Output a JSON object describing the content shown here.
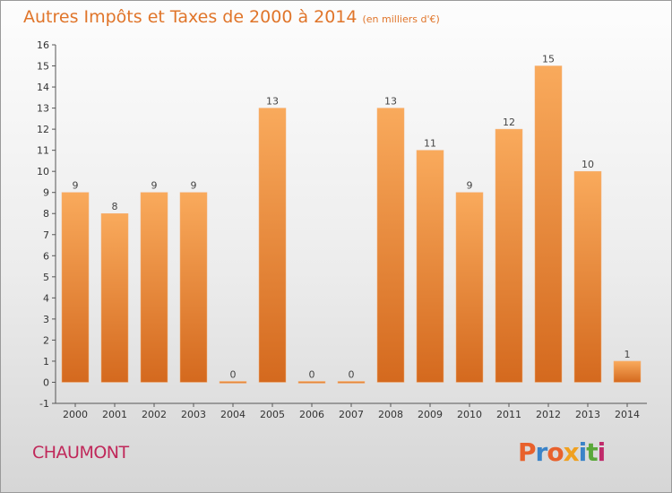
{
  "chart_data": {
    "type": "bar",
    "title": "Autres Impôts et Taxes de 2000 à 2014",
    "unit": "(en milliers d'€)",
    "categories": [
      "2000",
      "2001",
      "2002",
      "2003",
      "2004",
      "2005",
      "2006",
      "2007",
      "2008",
      "2009",
      "2010",
      "2011",
      "2012",
      "2013",
      "2014"
    ],
    "values": [
      9,
      8,
      9,
      9,
      0,
      13,
      0,
      0,
      13,
      11,
      9,
      12,
      15,
      10,
      1
    ],
    "ylim": [
      -1,
      16
    ],
    "yticks": [
      -1,
      0,
      1,
      2,
      3,
      4,
      5,
      6,
      7,
      8,
      9,
      10,
      11,
      12,
      13,
      14,
      15,
      16
    ],
    "grid": false,
    "bar_color": "#f09a48"
  },
  "footer": {
    "city": "CHAUMONT",
    "logo": "Proxiti",
    "logo_colors": [
      "#e8612c",
      "#3a83c8",
      "#e8612c",
      "#f0a020",
      "#3a83c8",
      "#5aa83a",
      "#c02a6a"
    ]
  }
}
